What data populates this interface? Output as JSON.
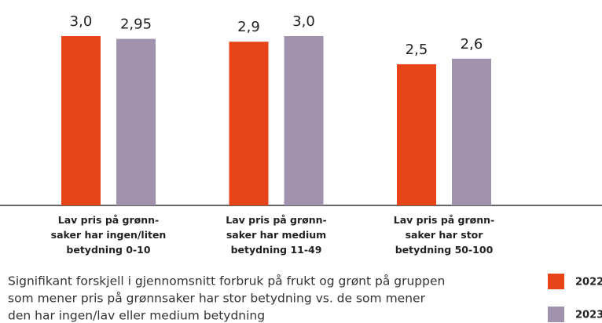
{
  "chart_data": {
    "type": "bar",
    "categories": [
      "Lav pris på grønn-\nsaker har ingen/liten\nbetydning 0-10",
      "Lav pris på grønn-\nsaker har medium\nbetydning 11-49",
      "Lav pris på grønn-\nsaker har stor\nbetydning 50-100"
    ],
    "series": [
      {
        "name": "2022",
        "color": "#e8441a",
        "values": [
          3.0,
          2.9,
          2.5
        ],
        "value_labels": [
          "3,0",
          "2,9",
          "2,5"
        ]
      },
      {
        "name": "2023",
        "color": "#a193ae",
        "values": [
          2.95,
          3.0,
          2.6
        ],
        "value_labels": [
          "2,95",
          "3,0",
          "2,6"
        ]
      }
    ],
    "ylim": [
      0,
      3.0
    ],
    "note": [
      "Signifikant forskjell i gjennomsnitt forbruk på frukt og grønt på gruppen",
      "som mener pris på grønnsaker har stor betydning vs. de som mener",
      "den har ingen/lav eller medium betydning"
    ]
  }
}
